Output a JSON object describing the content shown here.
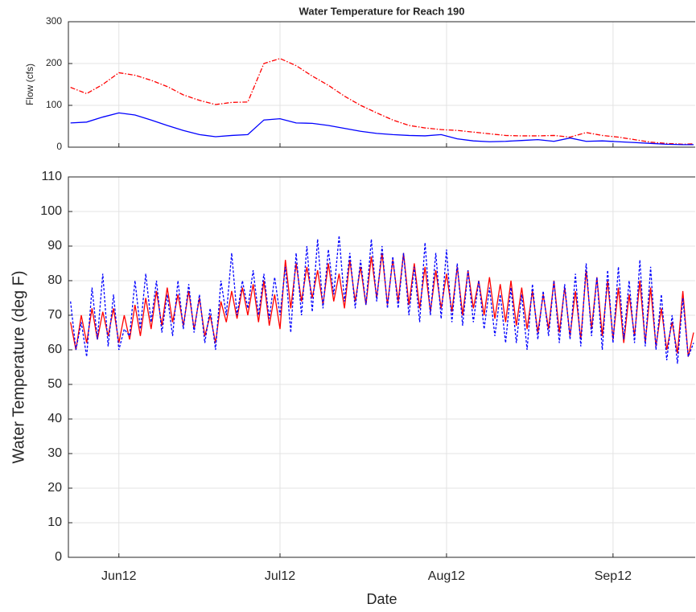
{
  "chart_data": [
    {
      "type": "line",
      "title": "Water Temperature for Reach 190",
      "ylabel": "Flow (cfs)",
      "x": [
        -9,
        -6,
        -3,
        0,
        3,
        6,
        9,
        12,
        15,
        18,
        21,
        24,
        27,
        30,
        33,
        36,
        39,
        42,
        45,
        48,
        51,
        54,
        57,
        60,
        63,
        66,
        69,
        72,
        75,
        78,
        81,
        84,
        87,
        90,
        93,
        96,
        99,
        102,
        105,
        107
      ],
      "series": [
        {
          "color": "#ff0000",
          "style": "dashdot",
          "values": [
            143,
            128,
            150,
            178,
            172,
            160,
            145,
            125,
            112,
            102,
            107,
            108,
            200,
            212,
            195,
            170,
            148,
            122,
            100,
            82,
            65,
            52,
            46,
            42,
            40,
            36,
            32,
            28,
            27,
            27,
            28,
            24,
            35,
            28,
            24,
            18,
            12,
            9,
            7,
            8
          ]
        },
        {
          "color": "#0000ff",
          "style": "solid",
          "values": [
            58,
            60,
            72,
            82,
            77,
            65,
            52,
            40,
            30,
            25,
            28,
            30,
            65,
            68,
            58,
            57,
            52,
            45,
            38,
            33,
            30,
            28,
            27,
            30,
            20,
            15,
            13,
            14,
            16,
            18,
            14,
            22,
            14,
            15,
            13,
            11,
            9,
            7,
            6,
            6
          ]
        }
      ],
      "xlim": [
        -9.4,
        107.3
      ],
      "xticks": [
        0,
        30,
        61,
        92
      ],
      "ylim": [
        0,
        300
      ],
      "yticks": [
        0,
        100,
        200,
        300
      ],
      "grid": true
    },
    {
      "type": "line",
      "xlabel": "Date",
      "ylabel": "Water Temperature (deg F)",
      "x": [
        -9,
        -8,
        -7,
        -6,
        -5,
        -4,
        -3,
        -2,
        -1,
        0,
        1,
        2,
        3,
        4,
        5,
        6,
        7,
        8,
        9,
        10,
        11,
        12,
        13,
        14,
        15,
        16,
        17,
        18,
        19,
        20,
        21,
        22,
        23,
        24,
        25,
        26,
        27,
        28,
        29,
        30,
        31,
        32,
        33,
        34,
        35,
        36,
        37,
        38,
        39,
        40,
        41,
        42,
        43,
        44,
        45,
        46,
        47,
        48,
        49,
        50,
        51,
        52,
        53,
        54,
        55,
        56,
        57,
        58,
        59,
        60,
        61,
        62,
        63,
        64,
        65,
        66,
        67,
        68,
        69,
        70,
        71,
        72,
        73,
        74,
        75,
        76,
        77,
        78,
        79,
        80,
        81,
        82,
        83,
        84,
        85,
        86,
        87,
        88,
        89,
        90,
        91,
        92,
        93,
        94,
        95,
        96,
        97,
        98,
        99,
        100,
        101,
        102,
        103,
        104,
        105,
        106,
        107
      ],
      "series": [
        {
          "color": "#ff0000",
          "style": "solid",
          "values": [
            68,
            60,
            70,
            62,
            72,
            63,
            71,
            64,
            72,
            62,
            70,
            63,
            73,
            64,
            75,
            66,
            77,
            67,
            78,
            68,
            76,
            67,
            77,
            66,
            75,
            64,
            70,
            62,
            74,
            68,
            77,
            69,
            78,
            70,
            79,
            68,
            80,
            67,
            76,
            66,
            86,
            72,
            85,
            74,
            84,
            75,
            83,
            73,
            85,
            74,
            82,
            72,
            86,
            74,
            84,
            73,
            87,
            75,
            88,
            73,
            86,
            74,
            88,
            73,
            85,
            72,
            84,
            71,
            83,
            72,
            82,
            71,
            84,
            70,
            83,
            72,
            80,
            70,
            81,
            69,
            79,
            68,
            80,
            67,
            78,
            66,
            77,
            65,
            76,
            66,
            80,
            65,
            78,
            64,
            77,
            63,
            83,
            66,
            81,
            64,
            80,
            63,
            78,
            62,
            76,
            64,
            80,
            62,
            78,
            61,
            72,
            60,
            68,
            59,
            77,
            58,
            65
          ]
        },
        {
          "color": "#0000ff",
          "style": "dotted",
          "values": [
            74,
            60,
            68,
            58,
            78,
            63,
            82,
            61,
            76,
            60,
            66,
            64,
            80,
            66,
            82,
            68,
            80,
            65,
            76,
            64,
            80,
            66,
            79,
            65,
            76,
            62,
            72,
            60,
            80,
            70,
            88,
            70,
            80,
            72,
            83,
            70,
            82,
            69,
            81,
            70,
            84,
            65,
            88,
            70,
            90,
            71,
            92,
            72,
            89,
            76,
            93,
            74,
            88,
            72,
            86,
            73,
            92,
            74,
            90,
            72,
            87,
            72,
            88,
            70,
            84,
            68,
            91,
            70,
            88,
            69,
            89,
            68,
            85,
            67,
            83,
            68,
            80,
            66,
            78,
            64,
            76,
            62,
            78,
            62,
            76,
            60,
            79,
            63,
            77,
            64,
            80,
            62,
            79,
            63,
            82,
            61,
            85,
            64,
            81,
            60,
            83,
            62,
            84,
            63,
            80,
            62,
            86,
            61,
            84,
            60,
            76,
            57,
            70,
            56,
            75,
            58,
            62
          ]
        }
      ],
      "xlim": [
        -9.4,
        107.3
      ],
      "xticks": [
        {
          "value": 0,
          "label": "Jun12"
        },
        {
          "value": 30,
          "label": "Jul12"
        },
        {
          "value": 61,
          "label": "Aug12"
        },
        {
          "value": 92,
          "label": "Sep12"
        }
      ],
      "ylim": [
        0,
        110
      ],
      "yticks": [
        0,
        10,
        20,
        30,
        40,
        50,
        60,
        70,
        80,
        90,
        100,
        110
      ],
      "grid": true
    }
  ]
}
